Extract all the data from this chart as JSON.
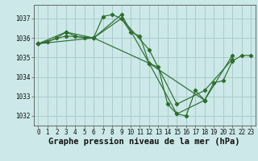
{
  "title": "Graphe pression niveau de la mer (hPa)",
  "bg_color": "#cce8e8",
  "grid_color": "#aacccc",
  "line_color": "#2d6e2d",
  "marker_color": "#2d6e2d",
  "xlim": [
    -0.5,
    23.5
  ],
  "ylim": [
    1031.5,
    1037.7
  ],
  "yticks": [
    1032,
    1033,
    1034,
    1035,
    1036,
    1037
  ],
  "xticks": [
    0,
    1,
    2,
    3,
    4,
    5,
    6,
    7,
    8,
    9,
    10,
    11,
    12,
    13,
    14,
    15,
    16,
    17,
    18,
    19,
    20,
    21,
    22,
    23
  ],
  "series": [
    {
      "x": [
        0,
        1,
        2,
        3,
        4,
        5,
        6,
        7,
        8,
        9,
        10,
        11,
        12,
        13,
        14,
        15,
        16,
        17,
        18,
        19,
        20,
        21,
        22,
        23
      ],
      "y": [
        1035.7,
        1035.8,
        1036.0,
        1036.3,
        1036.1,
        1036.0,
        1036.0,
        1037.1,
        1037.2,
        1037.0,
        1036.3,
        1036.1,
        1034.7,
        1034.5,
        1032.6,
        1032.1,
        1032.0,
        1033.3,
        1032.8,
        1033.7,
        1033.8,
        1034.8,
        1035.1,
        1035.1
      ]
    },
    {
      "x": [
        0,
        3,
        6,
        9,
        12,
        15,
        18,
        21
      ],
      "y": [
        1035.7,
        1036.3,
        1036.0,
        1037.2,
        1034.7,
        1032.1,
        1032.8,
        1035.1
      ]
    },
    {
      "x": [
        0,
        3,
        6,
        9,
        12,
        15,
        18,
        21
      ],
      "y": [
        1035.7,
        1036.1,
        1036.0,
        1037.0,
        1035.4,
        1032.6,
        1033.3,
        1034.9
      ]
    },
    {
      "x": [
        0,
        6,
        12,
        18
      ],
      "y": [
        1035.7,
        1036.0,
        1034.7,
        1032.8
      ]
    }
  ],
  "font_family": "monospace",
  "title_fontsize": 7.5,
  "tick_fontsize": 5.5
}
